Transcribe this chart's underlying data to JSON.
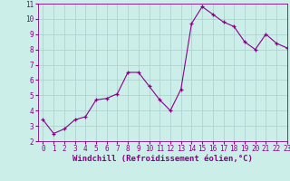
{
  "x": [
    0,
    1,
    2,
    3,
    4,
    5,
    6,
    7,
    8,
    9,
    10,
    11,
    12,
    13,
    14,
    15,
    16,
    17,
    18,
    19,
    20,
    21,
    22,
    23
  ],
  "y": [
    3.4,
    2.5,
    2.8,
    3.4,
    3.6,
    4.7,
    4.8,
    5.1,
    6.5,
    6.5,
    5.6,
    4.7,
    4.0,
    5.4,
    9.7,
    10.8,
    10.3,
    9.8,
    9.5,
    8.5,
    8.0,
    9.0,
    8.4,
    8.1
  ],
  "line_color": "#880088",
  "marker": "+",
  "bg_color": "#cceee8",
  "grid_color": "#aacccc",
  "xlabel": "Windchill (Refroidissement éolien,°C)",
  "ylim": [
    2,
    11
  ],
  "xlim": [
    -0.5,
    23
  ],
  "yticks": [
    2,
    3,
    4,
    5,
    6,
    7,
    8,
    9,
    10,
    11
  ],
  "xticks": [
    0,
    1,
    2,
    3,
    4,
    5,
    6,
    7,
    8,
    9,
    10,
    11,
    12,
    13,
    14,
    15,
    16,
    17,
    18,
    19,
    20,
    21,
    22,
    23
  ],
  "tick_fontsize": 5.5,
  "xlabel_fontsize": 6.5,
  "label_color": "#880088"
}
